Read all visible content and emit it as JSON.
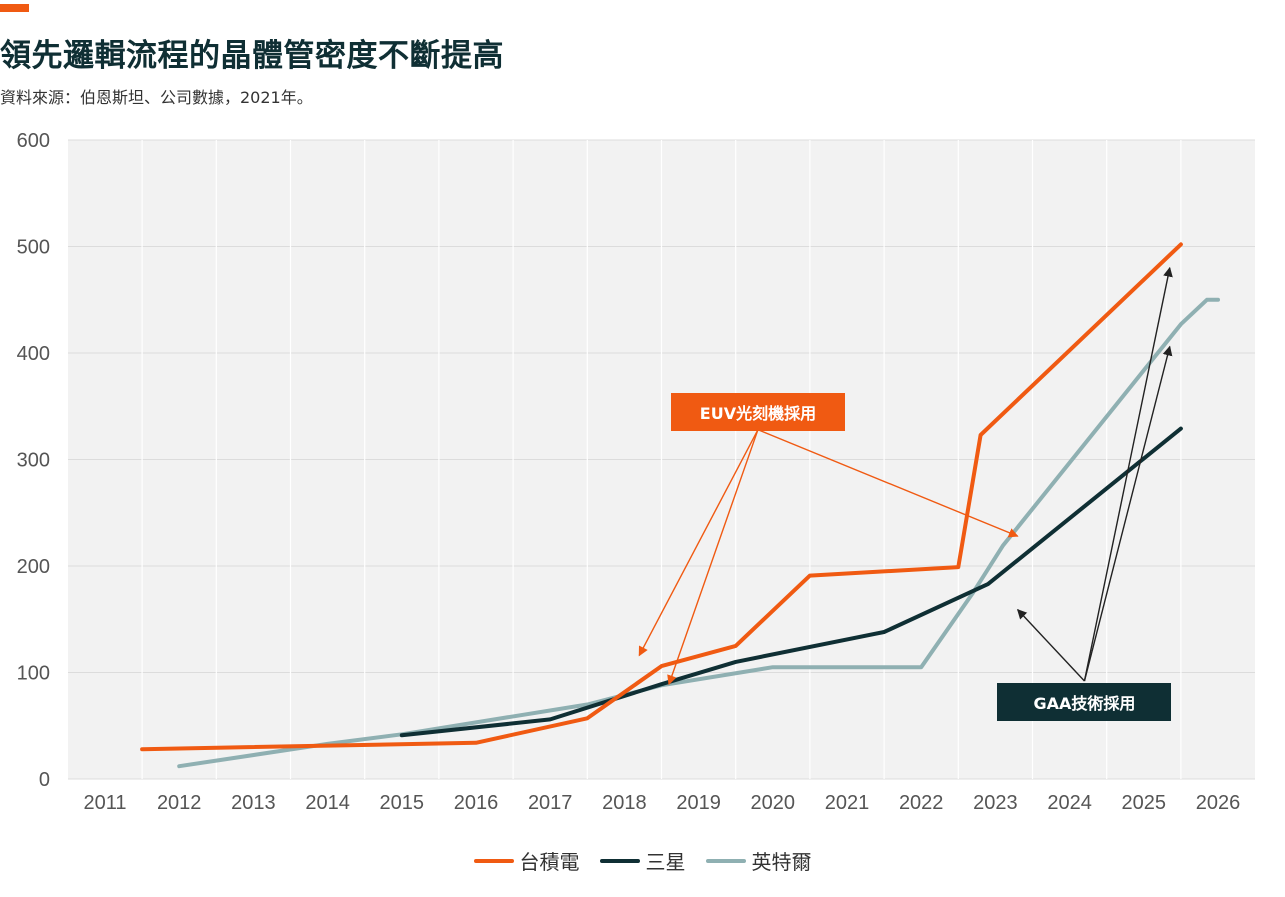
{
  "header": {
    "title": "領先邏輯流程的晶體管密度不斷提高",
    "subtitle": "資料來源：伯恩斯坦、公司數據，2021年。"
  },
  "colors": {
    "accent": "#f05a12",
    "tsmc": "#f05a12",
    "samsung": "#0f2f34",
    "intel": "#8fb0b2",
    "plot_bg": "#f2f2f2"
  },
  "chart_data": {
    "type": "line",
    "title": "領先邏輯流程的晶體管密度不斷提高",
    "xlabel": "",
    "ylabel": "",
    "ylim": [
      0,
      600
    ],
    "yticks": [
      0,
      100,
      200,
      300,
      400,
      500,
      600
    ],
    "xcategories": [
      "2011",
      "2012",
      "2013",
      "2014",
      "2015",
      "2016",
      "2017",
      "2018",
      "2019",
      "2020",
      "2021",
      "2022",
      "2023",
      "2024",
      "2025",
      "2026"
    ],
    "xlim": [
      2011,
      2026.4
    ],
    "grid": true,
    "legend_position": "bottom-center",
    "series": [
      {
        "name": "台積電",
        "color": "#f05a12",
        "points": [
          [
            2011.5,
            28
          ],
          [
            2016,
            34
          ],
          [
            2017.5,
            57
          ],
          [
            2018.5,
            106
          ],
          [
            2019.5,
            125
          ],
          [
            2020.5,
            191
          ],
          [
            2022.5,
            199
          ],
          [
            2022.8,
            323
          ],
          [
            2025.5,
            502
          ]
        ]
      },
      {
        "name": "三星",
        "color": "#0f2f34",
        "points": [
          [
            2015,
            41
          ],
          [
            2017,
            56
          ],
          [
            2018.5,
            89
          ],
          [
            2019.5,
            110
          ],
          [
            2021.5,
            138
          ],
          [
            2022.9,
            183
          ],
          [
            2025.5,
            329
          ]
        ]
      },
      {
        "name": "英特爾",
        "color": "#8fb0b2",
        "points": [
          [
            2012,
            12
          ],
          [
            2014,
            33
          ],
          [
            2015,
            42
          ],
          [
            2017.5,
            70
          ],
          [
            2018.5,
            88
          ],
          [
            2020,
            105
          ],
          [
            2022,
            105
          ],
          [
            2022.7,
            175
          ],
          [
            2023.1,
            219
          ],
          [
            2025.5,
            427
          ],
          [
            2025.85,
            450
          ],
          [
            2026,
            450
          ]
        ]
      }
    ],
    "annotations": [
      {
        "label": "EUV光刻機採用",
        "color": "#f05a12",
        "anchor": [
          2019.8,
          328
        ],
        "targets": [
          [
            2018.2,
            116
          ],
          [
            2018.6,
            89
          ],
          [
            2023.3,
            228
          ]
        ]
      },
      {
        "label": "GAA技術採用",
        "color": "#0f2f34",
        "anchor": [
          2024.2,
          92
        ],
        "targets": [
          [
            2023.3,
            159
          ],
          [
            2025.35,
            480
          ],
          [
            2025.35,
            406
          ]
        ]
      }
    ]
  }
}
